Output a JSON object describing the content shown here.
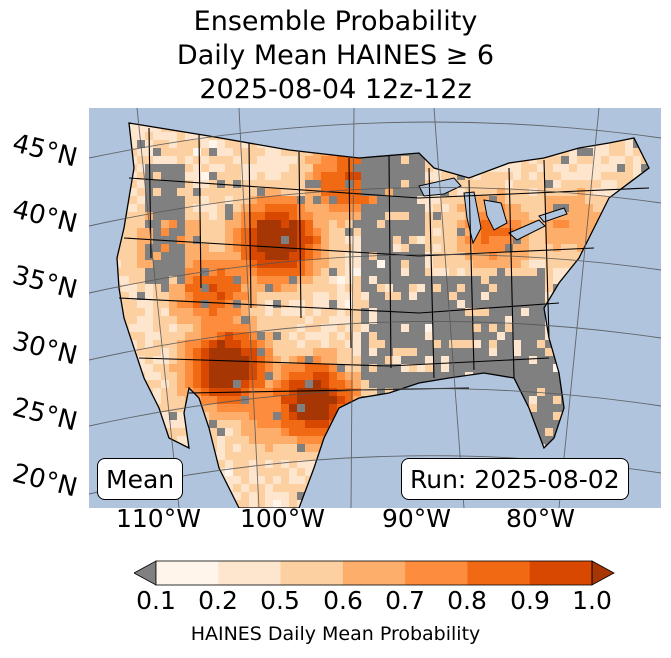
{
  "title": {
    "line1": "Ensemble Probability",
    "line2": "Daily Mean HAINES ≥ 6",
    "line3": "2025-08-04 12z-12z"
  },
  "map": {
    "colors": {
      "ocean": "#b0c4de",
      "nodata": "#808080",
      "background_land": "#fff5eb",
      "border": "#000000",
      "graticule": "#555555"
    },
    "latitude_labels": [
      "45°N",
      "40°N",
      "35°N",
      "30°N",
      "25°N",
      "20°N"
    ],
    "longitude_labels": [
      "110°W",
      "100°W",
      "90°W",
      "80°W"
    ],
    "stat_label": "Mean",
    "run_label": "Run: 2025-08-02"
  },
  "colorbar": {
    "ticks": [
      "0.1",
      "0.2",
      "0.5",
      "0.6",
      "0.7",
      "0.8",
      "0.9",
      "1.0"
    ],
    "colors": [
      "#fff5eb",
      "#fee6ce",
      "#fdd0a2",
      "#fdae6b",
      "#fd8d3c",
      "#f16913",
      "#d94801",
      "#a63603"
    ],
    "under_color": "#808080",
    "label": "HAINES Daily Mean Probability"
  }
}
